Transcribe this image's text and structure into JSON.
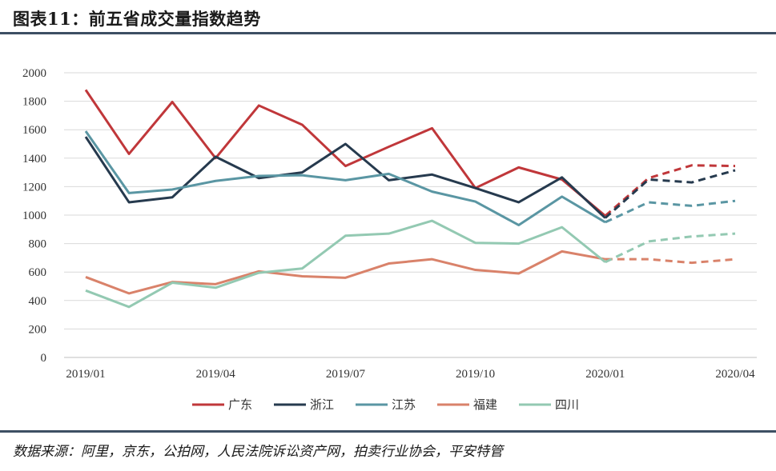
{
  "header": {
    "title": "图表11：前五省成交量指数趋势"
  },
  "footer": {
    "source": "数据来源：阿里，京东，公拍网，人民法院诉讼资产网，拍卖行业协会，平安特管"
  },
  "chart_data": {
    "type": "line",
    "title": "",
    "xlabel": "",
    "ylabel": "",
    "x": [
      "2019/01",
      "2019/02",
      "2019/03",
      "2019/04",
      "2019/05",
      "2019/06",
      "2019/07",
      "2019/08",
      "2019/09",
      "2019/10",
      "2019/11",
      "2019/12",
      "2020/01",
      "2020/02",
      "2020/03",
      "2020/04"
    ],
    "x_tick_labels": [
      "2019/01",
      "2019/04",
      "2019/07",
      "2019/10",
      "2020/01",
      "2020/04"
    ],
    "ylim": [
      0,
      2000
    ],
    "yticks": [
      0,
      200,
      400,
      600,
      800,
      1000,
      1200,
      1400,
      1600,
      1800,
      2000
    ],
    "grid": "horizontal",
    "legend_position": "bottom",
    "actual_until_index": 12,
    "projection_style": "dashed",
    "series": [
      {
        "name": "广东",
        "color": "#c0373a",
        "values": [
          1880,
          1430,
          1795,
          1400,
          1770,
          1635,
          1345,
          1480,
          1610,
          1190,
          1335,
          1250,
          995,
          1260,
          1350,
          1345
        ]
      },
      {
        "name": "浙江",
        "color": "#263a4e",
        "values": [
          1550,
          1090,
          1125,
          1410,
          1260,
          1300,
          1500,
          1245,
          1285,
          1190,
          1090,
          1265,
          980,
          1250,
          1230,
          1315
        ]
      },
      {
        "name": "江苏",
        "color": "#5a96a3",
        "values": [
          1590,
          1155,
          1180,
          1240,
          1275,
          1280,
          1245,
          1290,
          1165,
          1095,
          930,
          1130,
          950,
          1090,
          1065,
          1100
        ]
      },
      {
        "name": "福建",
        "color": "#d9826a",
        "values": [
          565,
          450,
          530,
          515,
          605,
          570,
          560,
          660,
          690,
          615,
          590,
          745,
          690,
          690,
          665,
          690
        ]
      },
      {
        "name": "四川",
        "color": "#93c9b2",
        "values": [
          470,
          355,
          525,
          490,
          595,
          625,
          855,
          870,
          960,
          805,
          800,
          915,
          670,
          815,
          850,
          870
        ]
      }
    ]
  }
}
